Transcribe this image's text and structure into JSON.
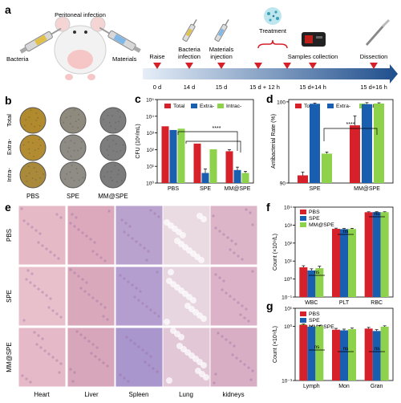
{
  "panel_labels": {
    "a": "a",
    "b": "b",
    "c": "c",
    "d": "d",
    "e": "e",
    "f": "f",
    "g": "g"
  },
  "panel_a": {
    "peritoneal_infection": "Peritoneal infection",
    "bacteria": "Bacteria",
    "materials": "Materials",
    "treatment": "Treatment",
    "steps": [
      {
        "label": "Raise",
        "day": "0 d"
      },
      {
        "label": "Bacteria infection",
        "day": "14 d"
      },
      {
        "label": "Materials injection",
        "day": "15 d"
      },
      {
        "label": "",
        "day": "15 d + 12 h"
      },
      {
        "label": "Samples collection",
        "day": "15 d+14 h"
      },
      {
        "label": "Dissection",
        "day": "15 d+16 h"
      }
    ],
    "colors": {
      "arrow_dark": "#1f4e8c",
      "arrow_light": "#dfe9f5",
      "marker": "#d6202a",
      "plate": "#b08a2a"
    }
  },
  "panel_b": {
    "rows": [
      "Total",
      "Extra-",
      "Intra-"
    ],
    "cols": [
      "PBS",
      "SPE",
      "MM@SPE"
    ],
    "plate_colors": [
      [
        "#b18a2e",
        "#8f8a7e",
        "#7d7d7d"
      ],
      [
        "#b38c32",
        "#8d8b83",
        "#7d7d7d"
      ],
      [
        "#a9893a",
        "#8e8c84",
        "#7b7b7b"
      ]
    ]
  },
  "panel_c": {
    "type": "bar",
    "ylabel": "CFU (10⁶/mL)",
    "yticks": [
      "10⁵",
      "10⁴",
      "10³",
      "10²",
      "10¹",
      "10⁰"
    ],
    "categories": [
      "PBS",
      "SPE",
      "MM@SPE"
    ],
    "series": [
      {
        "name": "Total",
        "color": "#d6202a",
        "values": [
          2500,
          230,
          80
        ],
        "err": [
          0,
          0,
          20
        ]
      },
      {
        "name": "Extra-",
        "color": "#1a5eb0",
        "values": [
          1500,
          4,
          6
        ],
        "err": [
          0,
          3,
          3
        ]
      },
      {
        "name": "Intrac-",
        "color": "#8ed14a",
        "values": [
          1800,
          105,
          4
        ],
        "err": [
          0,
          0,
          1
        ]
      }
    ],
    "ylim": [
      1,
      100000
    ],
    "significance": "****"
  },
  "chart_data": [
    {
      "type": "bar",
      "title": "",
      "ylabel": "CFU (10⁶/mL)",
      "categories": [
        "PBS",
        "SPE",
        "MM@SPE"
      ],
      "series": [
        {
          "name": "Total",
          "values": [
            2500,
            230,
            80
          ]
        },
        {
          "name": "Extra-",
          "values": [
            1500,
            4,
            6
          ]
        },
        {
          "name": "Intrac-",
          "values": [
            1800,
            105,
            4
          ]
        }
      ],
      "yscale": "log",
      "ylim": [
        1,
        100000
      ]
    },
    {
      "type": "bar",
      "title": "",
      "ylabel": "Antibacterial Rate (%)",
      "categories": [
        "SPE",
        "MM@SPE"
      ],
      "series": [
        {
          "name": "Total",
          "values": [
            90.9,
            97.0
          ]
        },
        {
          "name": "Extra-",
          "values": [
            99.75,
            99.7
          ]
        },
        {
          "name": "Intrac-",
          "values": [
            93.5,
            99.78
          ]
        }
      ],
      "yscale": "log",
      "ylim": [
        90,
        100
      ]
    },
    {
      "type": "bar",
      "title": "",
      "ylabel": "Count (×10⁹/L)",
      "categories": [
        "WBC",
        "PLT",
        "RBC"
      ],
      "series": [
        {
          "name": "PBS",
          "values": [
            4.5,
            620,
            5200
          ]
        },
        {
          "name": "SPE",
          "values": [
            3.0,
            600,
            5300
          ]
        },
        {
          "name": "MM@SPE",
          "values": [
            4.0,
            610,
            5250
          ]
        }
      ],
      "yscale": "log",
      "ylim": [
        0.1,
        10000
      ]
    },
    {
      "type": "bar",
      "title": "",
      "ylabel": "Count (×10⁹/L)",
      "categories": [
        "Lymph",
        "Mon",
        "Gran"
      ],
      "series": [
        {
          "name": "PBS",
          "values": [
            1.2,
            0.65,
            0.75
          ]
        },
        {
          "name": "SPE",
          "values": [
            0.95,
            0.6,
            0.55
          ]
        },
        {
          "name": "MM@SPE",
          "values": [
            1.0,
            0.7,
            0.95
          ]
        }
      ],
      "yscale": "log",
      "ylim": [
        0.001,
        10
      ]
    }
  ],
  "panel_d": {
    "ylabel": "Antibacterial Rate (%)",
    "yticks": [
      "100",
      "90"
    ],
    "categories": [
      "SPE",
      "MM@SPE"
    ],
    "series": [
      {
        "name": "Total",
        "color": "#d6202a",
        "values": [
          90.9,
          97.0
        ],
        "err": [
          0.4,
          1.2
        ]
      },
      {
        "name": "Extra-",
        "color": "#1a5eb0",
        "values": [
          99.75,
          99.7
        ],
        "err": [
          0.1,
          0.2
        ]
      },
      {
        "name": "Intrac-",
        "color": "#8ed14a",
        "values": [
          93.5,
          99.78
        ],
        "err": [
          0.2,
          0.1
        ]
      }
    ],
    "significance": "****"
  },
  "panel_e": {
    "rows": [
      "PBS",
      "SPE",
      "MM@SPE"
    ],
    "cols": [
      "Heart",
      "Liver",
      "Spleen",
      "Lung",
      "kidneys"
    ],
    "tile_colors": [
      [
        "#e6b9c6",
        "#dba9bb",
        "#b9a2cd",
        "#eadbe2",
        "#ddb5c8"
      ],
      [
        "#e8c0cc",
        "#d9a8bb",
        "#b49ed0",
        "#e7d5df",
        "#dbb2c7"
      ],
      [
        "#e5b9c7",
        "#d8a6ba",
        "#a996cc",
        "#e2c8d6",
        "#d8aec4"
      ]
    ]
  },
  "panel_f": {
    "ylabel": "Count (×10⁹/L)",
    "yticks": [
      "10⁴",
      "10³",
      "10²",
      "10¹",
      "10⁰",
      "10⁻¹"
    ],
    "categories": [
      "WBC",
      "PLT",
      "RBC"
    ],
    "series": [
      {
        "name": "PBS",
        "color": "#d6202a",
        "values": [
          4.5,
          620,
          5200
        ],
        "err": [
          1.0,
          60,
          300
        ]
      },
      {
        "name": "SPE",
        "color": "#1a5eb0",
        "values": [
          3.0,
          600,
          5300
        ],
        "err": [
          0.7,
          50,
          250
        ]
      },
      {
        "name": "MM@SPE",
        "color": "#8ed14a",
        "values": [
          4.0,
          610,
          5250
        ],
        "err": [
          1.2,
          55,
          280
        ]
      }
    ],
    "significance": "ns"
  },
  "panel_g": {
    "ylabel": "Count (×10⁹/L)",
    "yticks": [
      "10¹",
      "10⁰",
      "10⁻³"
    ],
    "categories": [
      "Lymph",
      "Mon",
      "Gran"
    ],
    "series": [
      {
        "name": "PBS",
        "color": "#d6202a",
        "values": [
          1.2,
          0.65,
          0.75
        ],
        "err": [
          0.15,
          0.12,
          0.12
        ]
      },
      {
        "name": "SPE",
        "color": "#1a5eb0",
        "values": [
          0.95,
          0.6,
          0.55
        ],
        "err": [
          0.1,
          0.1,
          0.1
        ]
      },
      {
        "name": "MM@SPE",
        "color": "#8ed14a",
        "values": [
          1.0,
          0.7,
          0.95
        ],
        "err": [
          0.12,
          0.1,
          0.12
        ]
      }
    ],
    "significance": "ns"
  }
}
